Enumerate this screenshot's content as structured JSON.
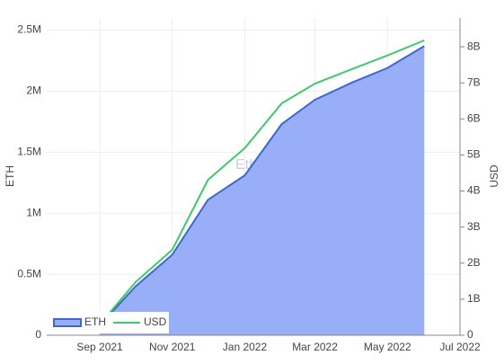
{
  "chart_data": {
    "type": "area",
    "watermark": "Etherscan",
    "y_label": "ETH",
    "y2_label": "USD",
    "x": [
      "2021-09",
      "2021-10",
      "2021-11",
      "2021-12",
      "2022-01",
      "2022-02",
      "2022-03",
      "2022-04",
      "2022-05",
      "2022-06"
    ],
    "series": [
      {
        "name": "ETH",
        "color": "#3f67cc",
        "fill": "#98aef7",
        "values": [
          80000,
          400000,
          660000,
          1110000,
          1310000,
          1730000,
          1930000,
          2070000,
          2190000,
          2370000
        ]
      },
      {
        "name": "USD",
        "color": "#3ec96d",
        "axis": "y2",
        "values": [
          300000000,
          1470000000,
          2370000000,
          4310000000,
          5190000000,
          6430000000,
          6980000000,
          7380000000,
          7760000000,
          8180000000
        ]
      }
    ],
    "xlim": [
      "2021-08",
      "2022-07"
    ],
    "xticks": [
      {
        "value": "2021-09",
        "label": "Sep 2021"
      },
      {
        "value": "2021-11",
        "label": "Nov 2021"
      },
      {
        "value": "2022-01",
        "label": "Jan 2022"
      },
      {
        "value": "2022-03",
        "label": "Mar 2022"
      },
      {
        "value": "2022-05",
        "label": "May 2022"
      },
      {
        "value": "2022-07",
        "label": "Jul 2022"
      }
    ],
    "ylim": [
      0,
      2600000
    ],
    "yticks": [
      0,
      {
        "value": 500000,
        "label": "0.5M"
      },
      {
        "value": 1000000,
        "label": "1M"
      },
      {
        "value": 1500000,
        "label": "1.5M"
      },
      {
        "value": 2000000,
        "label": "2M"
      },
      {
        "value": 2500000,
        "label": "2.5M"
      }
    ],
    "y2lim": [
      0,
      8800000000
    ],
    "y2ticks": [
      0,
      {
        "value": 1000000000,
        "label": "1B"
      },
      {
        "value": 2000000000,
        "label": "2B"
      },
      {
        "value": 3000000000,
        "label": "3B"
      },
      {
        "value": 4000000000,
        "label": "4B"
      },
      {
        "value": 5000000000,
        "label": "5B"
      },
      {
        "value": 6000000000,
        "label": "6B"
      },
      {
        "value": 7000000000,
        "label": "7B"
      },
      {
        "value": 8000000000,
        "label": "8B"
      }
    ],
    "grid": true,
    "legend": "bottom-left"
  }
}
